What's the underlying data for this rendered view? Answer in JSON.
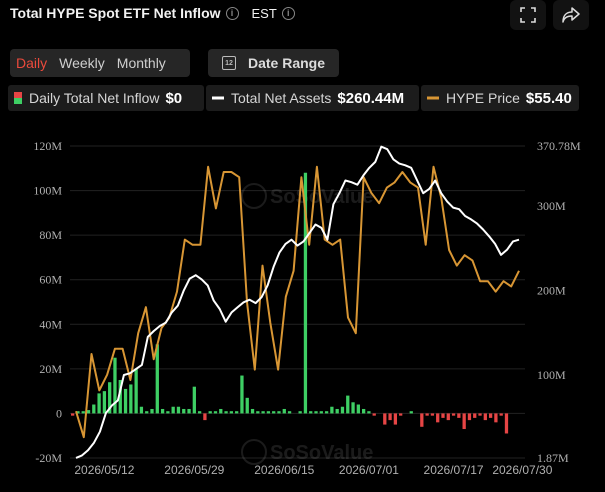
{
  "header": {
    "title": "Total HYPE Spot ETF Net Inflow",
    "timezone": "EST"
  },
  "tabs": [
    "Daily",
    "Weekly",
    "Monthly"
  ],
  "date_range_label": "Date Range",
  "legend": {
    "inflow_label": "Daily Total Net Inflow",
    "inflow_value": "$0",
    "assets_label": "Total Net Assets",
    "assets_value": "$260.44M",
    "price_label": "HYPE Price",
    "price_value": "$55.40"
  },
  "watermark": "SoSoValue",
  "colors": {
    "positive": "#3ecf64",
    "negative": "#e64545",
    "assets": "#ffffff",
    "price": "#d89634",
    "accent": "#ea4a3c"
  },
  "chart_data": {
    "type": "bar+line",
    "x_ticks": [
      "2026/05/12",
      "2026/05/29",
      "2026/06/15",
      "2026/07/01",
      "2026/07/17",
      "2026/07/30"
    ],
    "x_tick_index": [
      6,
      23,
      40,
      56,
      72,
      85
    ],
    "y_left_ticks": [
      "120M",
      "100M",
      "80M",
      "60M",
      "40M",
      "20M",
      "0",
      "-20M"
    ],
    "y_left_range": [
      -20,
      120
    ],
    "y_right_ticks": [
      "370.78M",
      "300M",
      "200M",
      "100M",
      "1.87M"
    ],
    "y_right_range": [
      1.87,
      370.78
    ],
    "series": [
      {
        "name": "Daily Total Net Inflow",
        "unit": "M USD",
        "values": [
          -1,
          1,
          1,
          1.5,
          4,
          9,
          10,
          14,
          25,
          15,
          11,
          13,
          20,
          3,
          1,
          2,
          31,
          2,
          1,
          3,
          3,
          2,
          2,
          12,
          1,
          -3,
          1,
          1,
          2,
          1,
          1,
          1,
          17,
          7,
          2,
          1,
          1,
          1,
          1,
          1,
          2,
          1,
          0,
          1,
          108,
          1,
          1,
          1,
          1,
          3,
          2,
          3,
          8,
          5,
          4,
          2,
          1,
          -1,
          0,
          -5,
          -3,
          -5,
          -1,
          0,
          1,
          0,
          -6,
          -1,
          -1,
          -4,
          -2,
          -3,
          -1,
          -2,
          -7,
          -3,
          -2,
          -1,
          -3,
          -2,
          -4,
          -1,
          -9,
          0,
          0,
          0
        ]
      },
      {
        "name": "Total Net Assets",
        "unit": "M USD",
        "values": [
          2,
          5,
          11,
          20,
          33,
          55,
          64,
          70,
          100,
          102,
          107,
          112,
          145,
          152,
          158,
          162,
          174,
          182,
          200,
          214,
          218,
          213,
          206,
          188,
          178,
          163,
          174,
          180,
          186,
          189,
          185,
          192,
          206,
          228,
          245,
          255,
          260,
          253,
          258,
          268,
          278,
          274,
          260,
          302,
          315,
          330,
          328,
          325,
          336,
          345,
          352,
          370,
          367,
          355,
          350,
          348,
          345,
          330,
          315,
          320,
          330,
          315,
          305,
          298,
          296,
          288,
          284,
          279,
          272,
          264,
          255,
          242,
          248,
          258,
          260
        ]
      },
      {
        "name": "HYPE Price",
        "unit": "USD",
        "values": [
          29,
          24,
          40,
          33,
          36,
          41,
          41,
          35,
          44,
          49,
          39,
          45,
          47,
          52,
          62,
          61,
          61,
          76,
          68,
          75,
          75,
          74,
          50,
          37,
          57,
          46,
          37,
          51,
          56,
          74,
          61,
          76,
          62,
          61,
          62,
          47,
          44,
          74,
          71,
          69,
          72,
          73,
          75,
          73,
          72,
          61,
          76,
          70,
          60,
          57,
          59,
          58,
          54,
          54,
          52,
          54,
          53,
          56
        ]
      }
    ]
  }
}
